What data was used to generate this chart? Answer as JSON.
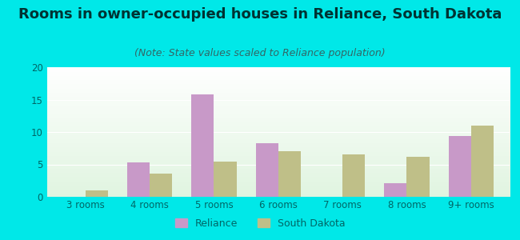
{
  "title": "Rooms in owner-occupied houses in Reliance, South Dakota",
  "subtitle": "(Note: State values scaled to Reliance population)",
  "categories": [
    "3 rooms",
    "4 rooms",
    "5 rooms",
    "6 rooms",
    "7 rooms",
    "8 rooms",
    "9+ rooms"
  ],
  "reliance_values": [
    0,
    5.3,
    15.8,
    8.3,
    0,
    2.1,
    9.4
  ],
  "south_dakota_values": [
    1.0,
    3.6,
    5.4,
    7.0,
    6.6,
    6.2,
    11.0
  ],
  "reliance_color": "#c899c8",
  "south_dakota_color": "#bfbf88",
  "background_outer": "#00e8e8",
  "ylim": [
    0,
    20
  ],
  "yticks": [
    0,
    5,
    10,
    15,
    20
  ],
  "bar_width": 0.35,
  "title_fontsize": 13,
  "subtitle_fontsize": 9,
  "tick_fontsize": 8.5,
  "legend_fontsize": 9,
  "title_color": "#003333",
  "subtitle_color": "#336666",
  "tick_color": "#006666"
}
